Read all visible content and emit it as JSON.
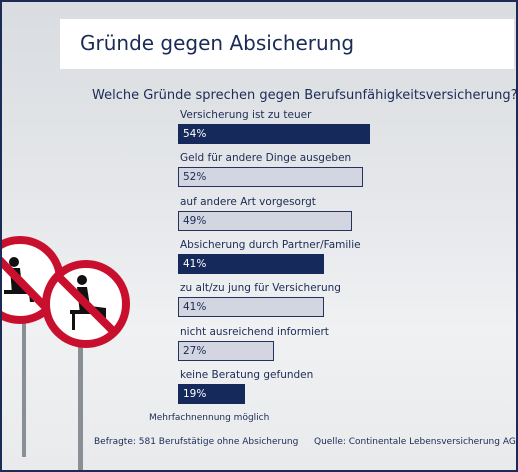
{
  "title": "Gründe gegen Absicherung",
  "question": "Welche Gründe sprechen gegen Berufsunfähigkeitsversicherung?",
  "note": "Mehrfachnennung möglich",
  "respondents": "Befragte: 581 Berufstätige ohne Absicherung",
  "source": "Quelle: Continentale Lebensversicherung AG",
  "colors": {
    "dark_bar": "#152a5a",
    "light_bar": "#d3d6e1",
    "text": "#1b2b55",
    "sign_red": "#c8102e"
  },
  "chart_data": {
    "type": "bar",
    "orientation": "horizontal",
    "categories": [
      "Versicherung ist zu teuer",
      "Geld für andere Dinge ausgeben",
      "auf andere Art vorgesorgt",
      "Absicherung durch Partner/Familie",
      "zu alt/zu jung für Versicherung",
      "nicht ausreichend informiert",
      "keine Beratung gefunden"
    ],
    "values": [
      54,
      52,
      49,
      41,
      41,
      27,
      19
    ],
    "value_labels": [
      "54%",
      "52%",
      "49%",
      "41%",
      "41%",
      "27%",
      "19%"
    ],
    "bar_styles": [
      "dark",
      "light",
      "light",
      "dark",
      "light",
      "light",
      "dark"
    ],
    "unit": "%",
    "xlim": [
      0,
      100
    ]
  }
}
